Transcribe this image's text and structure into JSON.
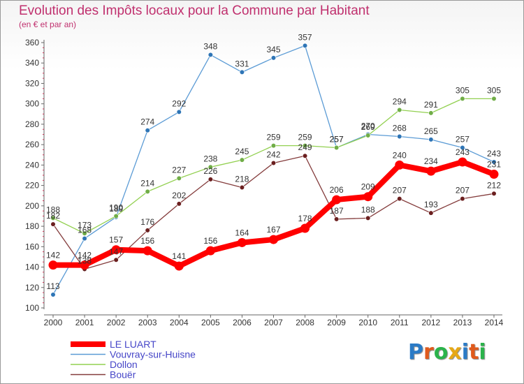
{
  "title": "Evolution des Impôts locaux pour la Commune par Habitant",
  "subtitle": "(en € et par an)",
  "logo": {
    "text": "Proxiti",
    "letter_colors": [
      "#2b7bc6",
      "#e05a1c",
      "#2bb34b",
      "#e6a817",
      "#2b7bc6",
      "#e05a1c",
      "#2bb34b"
    ]
  },
  "chart_data": {
    "type": "line",
    "title": "Evolution des Impôts locaux pour la Commune par Habitant",
    "subtitle": "(en € et par an)",
    "xlabel": "",
    "ylabel": "",
    "x": [
      "2000",
      "2001",
      "2002",
      "2003",
      "2004",
      "2005",
      "2006",
      "2007",
      "2008",
      "2009",
      "2010",
      "2011",
      "2012",
      "2013",
      "2014"
    ],
    "ylim": [
      100,
      360
    ],
    "yticks": [
      100,
      120,
      140,
      160,
      180,
      200,
      220,
      240,
      260,
      280,
      300,
      320,
      340,
      360
    ],
    "grid": false,
    "legend_position": "bottom-left",
    "series": [
      {
        "name": "Vouvray-sur-Huisne",
        "color": "#5b9bd5",
        "marker_color": "#2e75b6",
        "emphasis": false,
        "values": [
          113,
          168,
          189,
          274,
          292,
          348,
          331,
          345,
          357,
          257,
          270,
          268,
          265,
          257,
          243
        ]
      },
      {
        "name": "Dollon",
        "color": "#92d050",
        "marker_color": "#70ad47",
        "emphasis": false,
        "values": [
          188,
          173,
          190,
          214,
          227,
          238,
          245,
          259,
          259,
          257,
          269,
          294,
          291,
          305,
          305
        ]
      },
      {
        "name": "Bouër",
        "color": "#843c3c",
        "marker_color": "#6b1f1f",
        "emphasis": false,
        "values": [
          182,
          138,
          147,
          176,
          202,
          226,
          218,
          242,
          249,
          187,
          188,
          207,
          193,
          207,
          212
        ]
      },
      {
        "name": "LE LUART",
        "color": "#ff0000",
        "marker_color": "#ff0000",
        "emphasis": true,
        "values": [
          142,
          142,
          157,
          156,
          141,
          156,
          164,
          167,
          178,
          206,
          209,
          240,
          234,
          243,
          231
        ]
      }
    ],
    "legend_order": [
      "LE LUART",
      "Vouvray-sur-Huisne",
      "Dollon",
      "Bouër"
    ]
  }
}
